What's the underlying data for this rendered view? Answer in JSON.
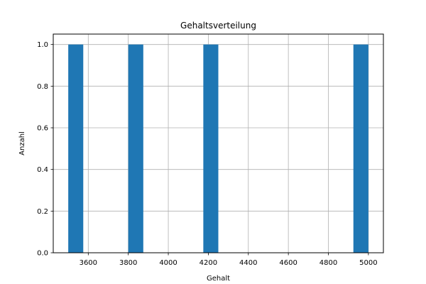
{
  "chart_data": {
    "type": "bar",
    "title": "Gehaltsverteilung",
    "xlabel": "Gehalt",
    "ylabel": "Anzahl",
    "xlim": [
      3425,
      5075
    ],
    "ylim": [
      0,
      1.05
    ],
    "x_ticks": [
      3600,
      3800,
      4000,
      4200,
      4400,
      4600,
      4800,
      5000
    ],
    "y_ticks": [
      0.0,
      0.2,
      0.4,
      0.6,
      0.8,
      1.0
    ],
    "x_tick_labels": [
      "3600",
      "3800",
      "4000",
      "4200",
      "4400",
      "4600",
      "4800",
      "5000"
    ],
    "y_tick_labels": [
      "0.0",
      "0.2",
      "0.4",
      "0.6",
      "0.8",
      "1.0"
    ],
    "grid": true,
    "bins": [
      {
        "start": 3500,
        "end": 3575,
        "count": 1
      },
      {
        "start": 3800,
        "end": 3875,
        "count": 1
      },
      {
        "start": 4175,
        "end": 4250,
        "count": 1
      },
      {
        "start": 4925,
        "end": 5000,
        "count": 1
      }
    ],
    "colors": {
      "bar": "#1f77b4",
      "grid": "#b0b0b0"
    }
  }
}
